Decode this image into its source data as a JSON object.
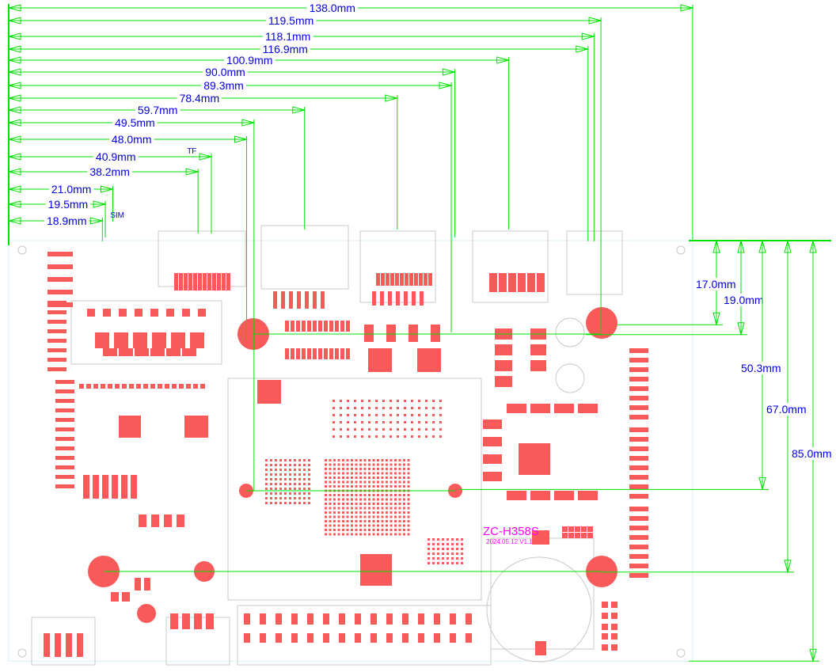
{
  "units": "mm",
  "colors": {
    "dimension_line": "#00e000",
    "dimension_text": "#0000e0",
    "pads": "#f85a5a",
    "outline": "#c8c8c8",
    "silkscreen_label": "#ff00ff"
  },
  "board": {
    "name": "ZC-H358S",
    "date_version": "2024.05.12  V1.1",
    "width_mm": 138.0,
    "height_mm": 85.0
  },
  "horizontal_dimensions": [
    {
      "value": 138.0,
      "label": "138.0mm"
    },
    {
      "value": 119.5,
      "label": "119.5mm"
    },
    {
      "value": 118.1,
      "label": "118.1mm"
    },
    {
      "value": 116.9,
      "label": "116.9mm"
    },
    {
      "value": 100.9,
      "label": "100.9mm"
    },
    {
      "value": 90.0,
      "label": "90.0mm"
    },
    {
      "value": 89.3,
      "label": "89.3mm"
    },
    {
      "value": 78.4,
      "label": "78.4mm"
    },
    {
      "value": 59.7,
      "label": "59.7mm"
    },
    {
      "value": 49.5,
      "label": "49.5mm"
    },
    {
      "value": 48.0,
      "label": "48.0mm"
    },
    {
      "value": 40.9,
      "label": "40.9mm",
      "note": "TF"
    },
    {
      "value": 38.2,
      "label": "38.2mm"
    },
    {
      "value": 21.0,
      "label": "21.0mm"
    },
    {
      "value": 19.5,
      "label": "19.5mm"
    },
    {
      "value": 18.9,
      "label": "18.9mm",
      "note": "SIM"
    }
  ],
  "vertical_dimensions": [
    {
      "value": 17.0,
      "label": "17.0mm"
    },
    {
      "value": 19.0,
      "label": "19.0mm"
    },
    {
      "value": 50.3,
      "label": "50.3mm"
    },
    {
      "value": 67.0,
      "label": "67.0mm"
    },
    {
      "value": 85.0,
      "label": "85.0mm"
    }
  ]
}
